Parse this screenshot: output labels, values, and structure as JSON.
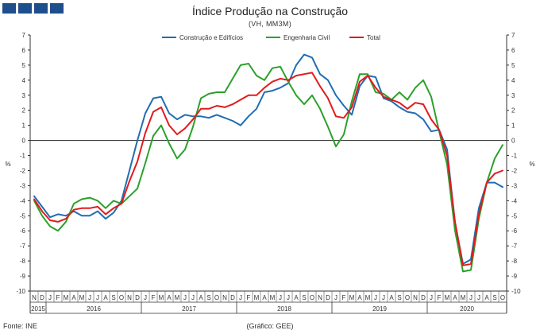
{
  "title": "Índice Produção na Construção",
  "subtitle": "(VH, MM3M)",
  "source": "Fonte: INE",
  "credit": "(Gráfico: GEE)",
  "chart_data": {
    "type": "line",
    "ylabel": "%",
    "ylabel_right": "%",
    "ylim": [
      -10,
      7
    ],
    "yticks": [
      -10,
      -9,
      -8,
      -7,
      -6,
      -5,
      -4,
      -3,
      -2,
      -1,
      0,
      1,
      2,
      3,
      4,
      5,
      6,
      7
    ],
    "grid": false,
    "legend_position": "top",
    "month_labels": [
      "N",
      "D",
      "J",
      "F",
      "M",
      "A",
      "M",
      "J",
      "J",
      "A",
      "S",
      "O",
      "N",
      "D",
      "J",
      "F",
      "M",
      "A",
      "M",
      "J",
      "J",
      "A",
      "S",
      "O",
      "N",
      "D",
      "J",
      "F",
      "M",
      "A",
      "M",
      "J",
      "J",
      "A",
      "S",
      "O",
      "N",
      "D",
      "J",
      "F",
      "M",
      "A",
      "M",
      "J",
      "J",
      "A",
      "S",
      "O",
      "N",
      "D",
      "J",
      "F",
      "M",
      "A",
      "M",
      "J",
      "J",
      "A",
      "S",
      "O"
    ],
    "years": [
      {
        "label": "2015",
        "start": 0,
        "end": 1
      },
      {
        "label": "2016",
        "start": 2,
        "end": 13
      },
      {
        "label": "2017",
        "start": 14,
        "end": 25
      },
      {
        "label": "2018",
        "start": 26,
        "end": 37
      },
      {
        "label": "2019",
        "start": 38,
        "end": 49
      },
      {
        "label": "2020",
        "start": 50,
        "end": 59
      }
    ],
    "series": [
      {
        "name": "Construção e Edifícios",
        "color": "#1f6db3",
        "values": [
          -3.7,
          -4.4,
          -5.1,
          -4.9,
          -5.0,
          -4.7,
          -5.0,
          -5.0,
          -4.7,
          -5.2,
          -4.8,
          -4.0,
          -2.0,
          0.0,
          1.8,
          2.8,
          2.9,
          1.8,
          1.4,
          1.7,
          1.6,
          1.6,
          1.5,
          1.7,
          1.5,
          1.3,
          1.0,
          1.6,
          2.1,
          3.2,
          3.3,
          3.5,
          3.8,
          5.0,
          5.7,
          5.5,
          4.4,
          4.0,
          3.0,
          2.3,
          1.7,
          3.6,
          4.3,
          4.2,
          2.8,
          2.6,
          2.2,
          1.9,
          1.8,
          1.4,
          0.6,
          0.7,
          -0.6,
          -5.5,
          -8.2,
          -7.9,
          -4.5,
          -2.8,
          -2.8,
          -3.1
        ]
      },
      {
        "name": "Engenharia Civil",
        "color": "#2ca02c",
        "values": [
          -4.0,
          -5.0,
          -5.7,
          -6.0,
          -5.4,
          -4.2,
          -3.9,
          -3.8,
          -4.0,
          -4.5,
          -4.0,
          -4.2,
          -3.7,
          -3.2,
          -1.5,
          0.3,
          1.0,
          -0.2,
          -1.2,
          -0.6,
          0.9,
          2.8,
          3.1,
          3.2,
          3.2,
          4.1,
          5.0,
          5.1,
          4.3,
          4.0,
          4.8,
          4.9,
          3.9,
          3.0,
          2.4,
          3.0,
          2.1,
          0.9,
          -0.4,
          0.4,
          2.6,
          4.4,
          4.4,
          3.2,
          3.1,
          2.7,
          3.2,
          2.7,
          3.5,
          4.0,
          2.9,
          0.6,
          -1.6,
          -6.0,
          -8.7,
          -8.6,
          -5.2,
          -2.8,
          -1.2,
          -0.3
        ]
      },
      {
        "name": "Total",
        "color": "#e31a1c",
        "values": [
          -3.9,
          -4.7,
          -5.3,
          -5.4,
          -5.2,
          -4.6,
          -4.5,
          -4.5,
          -4.4,
          -4.9,
          -4.5,
          -4.2,
          -2.7,
          -1.4,
          0.5,
          1.9,
          2.2,
          1.0,
          0.4,
          0.8,
          1.4,
          2.1,
          2.1,
          2.3,
          2.2,
          2.4,
          2.7,
          3.0,
          3.0,
          3.5,
          3.9,
          4.1,
          4.0,
          4.3,
          4.4,
          4.5,
          3.6,
          2.8,
          1.6,
          1.5,
          2.2,
          3.9,
          4.3,
          3.5,
          2.9,
          2.7,
          2.5,
          2.1,
          2.5,
          2.4,
          1.4,
          0.7,
          -1.0,
          -5.4,
          -8.3,
          -8.2,
          -4.9,
          -2.8,
          -2.2,
          -2.0
        ]
      }
    ]
  }
}
